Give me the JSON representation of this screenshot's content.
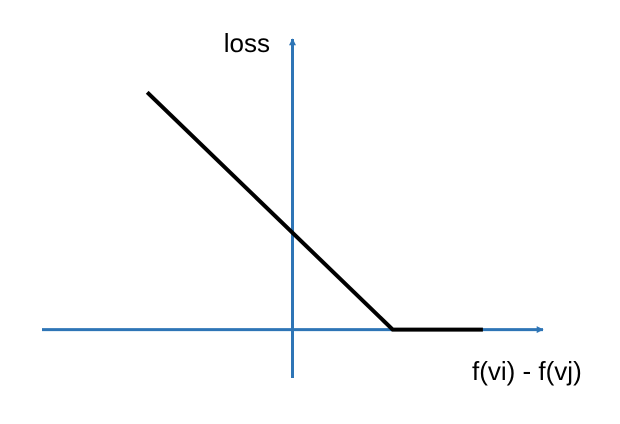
{
  "chart_data": {
    "type": "line",
    "title": "",
    "xlabel": "f(vi) - f(vj)",
    "ylabel": "loss",
    "grid": false,
    "legend": "none",
    "axis_color": "#2e75b6",
    "line_color": "#000000",
    "xlim": [
      -2.5,
      2.5
    ],
    "ylim": [
      -0.5,
      3.0
    ],
    "series": [
      {
        "x": [
          -1.45,
          1.0,
          1.9
        ],
        "y": [
          2.45,
          0.0,
          0.0
        ]
      }
    ]
  }
}
